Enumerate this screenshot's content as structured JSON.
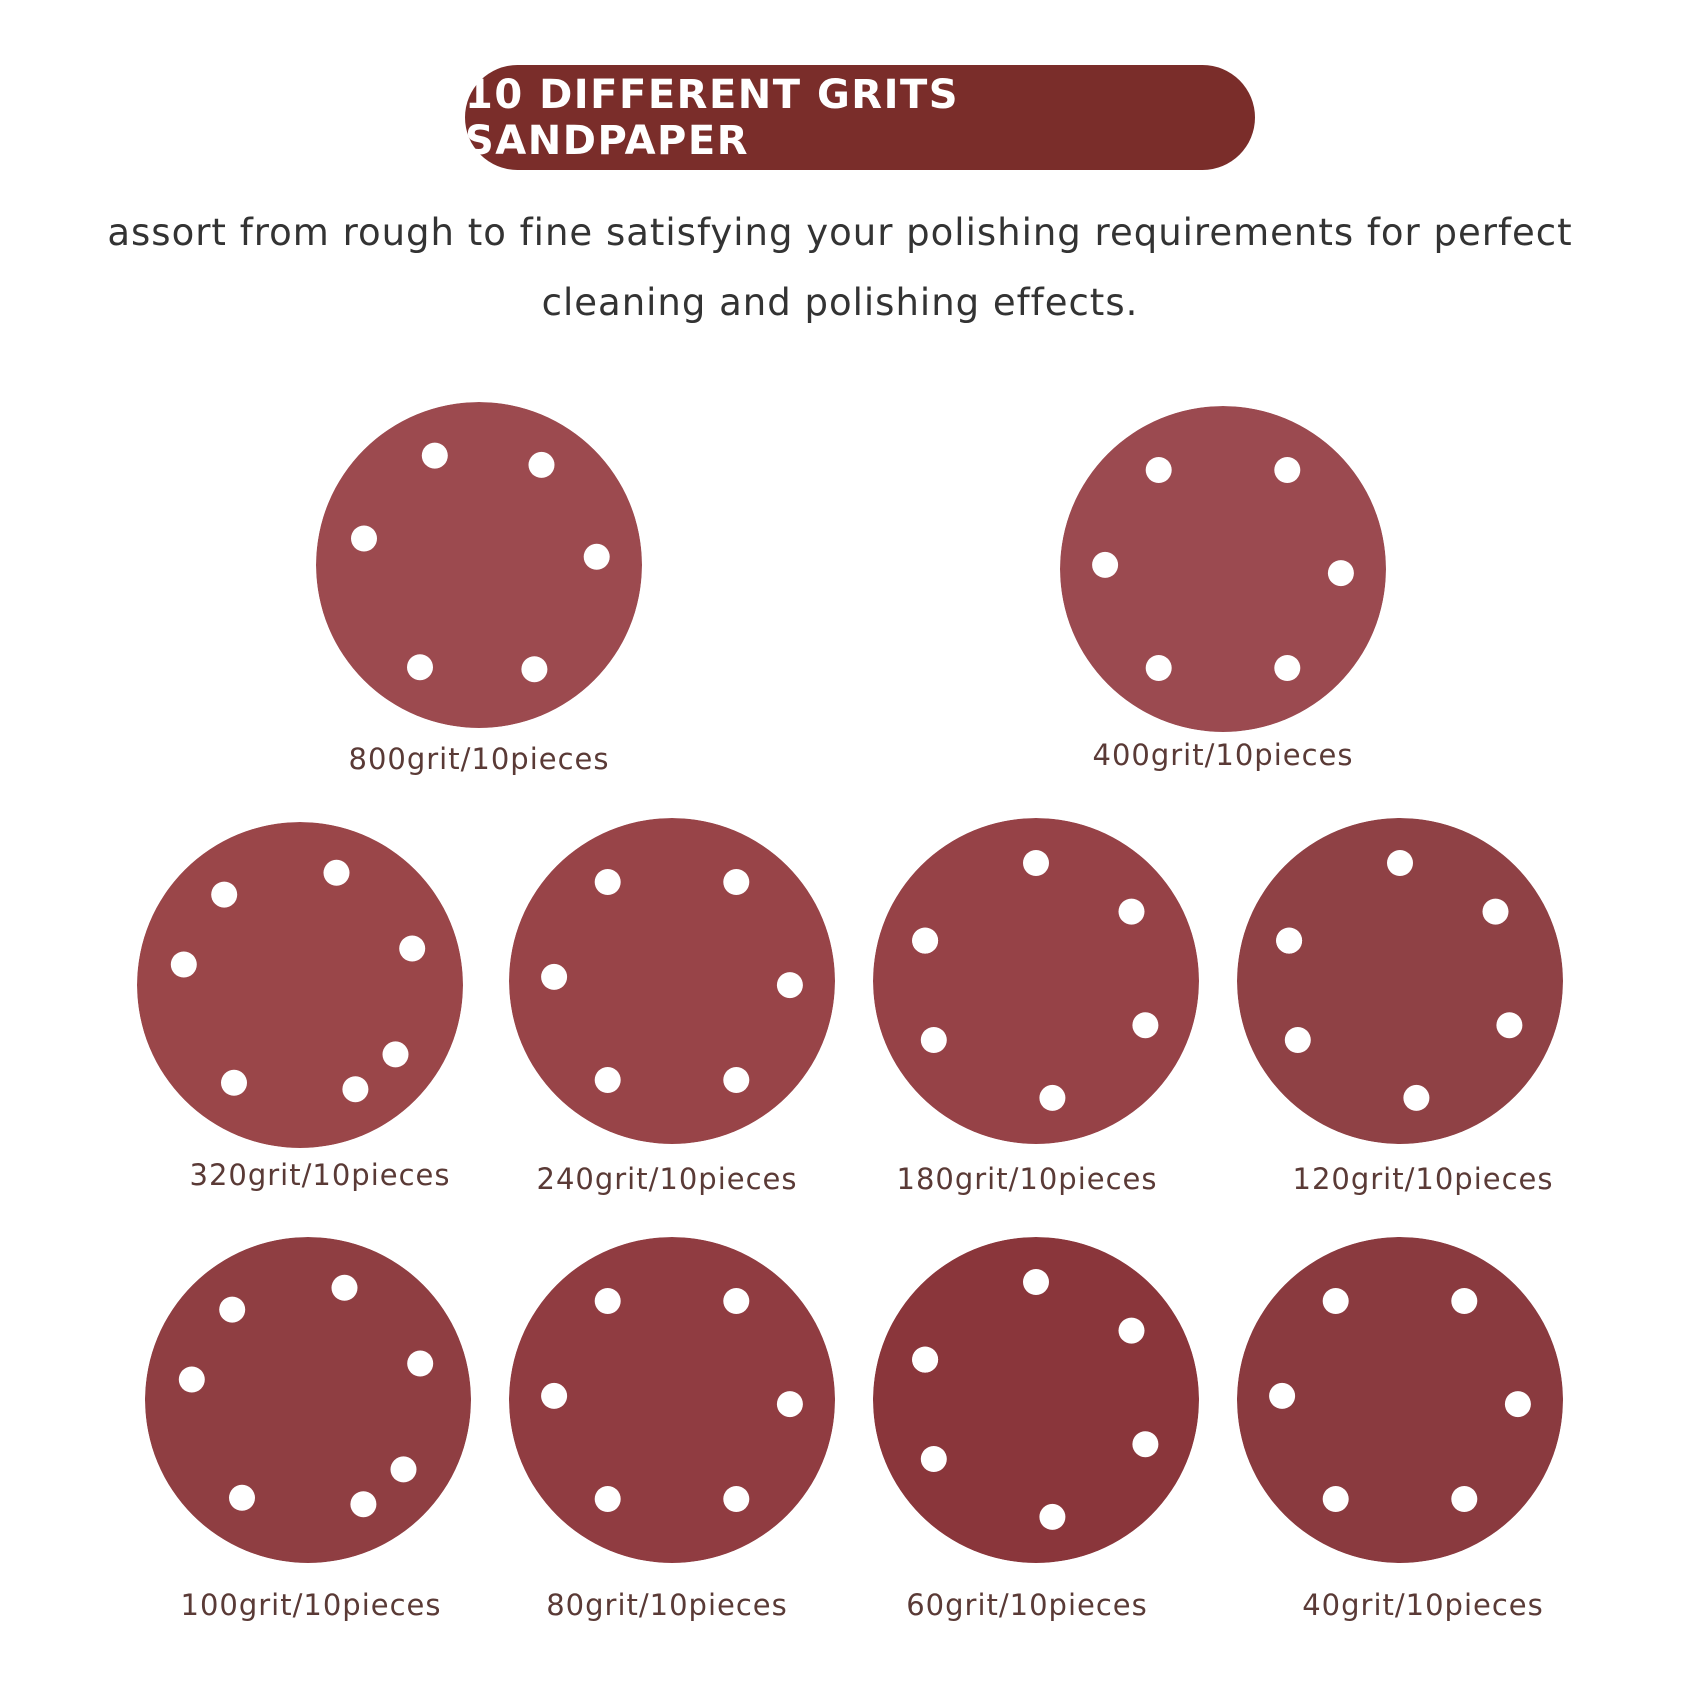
{
  "banner": {
    "title": "10 DIFFERENT GRITS SANDPAPER"
  },
  "subtitle": {
    "line1": "assort from rough to fine satisfying your polishing requirements for perfect",
    "line2": "cleaning and polishing effects."
  },
  "discs": [
    {
      "label": "800grit/10pieces",
      "color": "#9c4a4f"
    },
    {
      "label": "400grit/10pieces",
      "color": "#9b4a50"
    },
    {
      "label": "320grit/10pieces",
      "color": "#9a4649"
    },
    {
      "label": "240grit/10pieces",
      "color": "#984448"
    },
    {
      "label": "180grit/10pieces",
      "color": "#964247"
    },
    {
      "label": "120grit/10pieces",
      "color": "#8f4145"
    },
    {
      "label": "100grit/10pieces",
      "color": "#8f3e42"
    },
    {
      "label": "80grit/10pieces",
      "color": "#903c41"
    },
    {
      "label": "60grit/10pieces",
      "color": "#8a363b"
    },
    {
      "label": "40grit/10pieces",
      "color": "#8a3a3f"
    }
  ]
}
